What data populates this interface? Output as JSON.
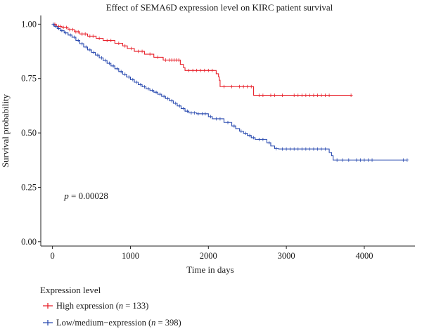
{
  "chart_data": {
    "type": "line",
    "subtype": "kaplan-meier",
    "title": "Effect of SEMA6D expression level on KIRC patient survival",
    "xlabel": "Time in days",
    "ylabel": "Survival probability",
    "xlim": [
      -150,
      4650
    ],
    "ylim": [
      -0.02,
      1.04
    ],
    "x_ticks": [
      0,
      1000,
      2000,
      3000,
      4000
    ],
    "x_tick_labels": [
      "0",
      "1000",
      "2000",
      "3000",
      "4000"
    ],
    "y_ticks": [
      0,
      0.25,
      0.5,
      0.75,
      1.0
    ],
    "y_tick_labels": [
      "0.00",
      "0.25",
      "0.50",
      "0.75",
      "1.00"
    ],
    "grid": false,
    "annotation": {
      "prefix": "p",
      "text": " = 0.00028",
      "x": 150,
      "y": 0.21
    },
    "legend": {
      "title": "Expression level",
      "placement": "bottom-left",
      "entries": [
        {
          "prefix": "High expression (",
          "n_label": "n",
          "suffix": " = 133)"
        },
        {
          "prefix": "Low/medium−expression (",
          "n_label": "n",
          "suffix": " = 398)"
        }
      ]
    },
    "series": [
      {
        "name": "High expression",
        "color": "#e8202a",
        "steps": [
          [
            0,
            1.0
          ],
          [
            50,
            0.99
          ],
          [
            120,
            0.985
          ],
          [
            200,
            0.975
          ],
          [
            280,
            0.965
          ],
          [
            350,
            0.955
          ],
          [
            450,
            0.945
          ],
          [
            560,
            0.935
          ],
          [
            650,
            0.925
          ],
          [
            800,
            0.912
          ],
          [
            900,
            0.9
          ],
          [
            960,
            0.888
          ],
          [
            1050,
            0.875
          ],
          [
            1180,
            0.862
          ],
          [
            1300,
            0.848
          ],
          [
            1420,
            0.835
          ],
          [
            1640,
            0.815
          ],
          [
            1680,
            0.8
          ],
          [
            1700,
            0.787
          ],
          [
            2100,
            0.772
          ],
          [
            2130,
            0.758
          ],
          [
            2140,
            0.742
          ],
          [
            2150,
            0.713
          ],
          [
            2580,
            0.673
          ],
          [
            3830,
            0.673
          ]
        ],
        "censor_x": [
          30,
          80,
          100,
          140,
          180,
          220,
          260,
          300,
          330,
          380,
          420,
          480,
          520,
          600,
          700,
          750,
          850,
          930,
          1010,
          1100,
          1150,
          1250,
          1350,
          1450,
          1500,
          1530,
          1560,
          1590,
          1620,
          1750,
          1800,
          1850,
          1900,
          1950,
          2000,
          2050,
          2200,
          2300,
          2400,
          2450,
          2500,
          2550,
          2650,
          2700,
          2800,
          2850,
          2950,
          3100,
          3150,
          3200,
          3250,
          3300,
          3350,
          3400,
          3450,
          3500,
          3550,
          3830
        ]
      },
      {
        "name": "Low/medium−expression",
        "color": "#2a4bb0",
        "steps": [
          [
            0,
            1.0
          ],
          [
            20,
            0.99
          ],
          [
            60,
            0.98
          ],
          [
            100,
            0.97
          ],
          [
            150,
            0.96
          ],
          [
            200,
            0.95
          ],
          [
            250,
            0.94
          ],
          [
            300,
            0.925
          ],
          [
            350,
            0.91
          ],
          [
            400,
            0.895
          ],
          [
            450,
            0.882
          ],
          [
            500,
            0.87
          ],
          [
            550,
            0.858
          ],
          [
            600,
            0.845
          ],
          [
            650,
            0.833
          ],
          [
            700,
            0.82
          ],
          [
            750,
            0.808
          ],
          [
            800,
            0.795
          ],
          [
            850,
            0.782
          ],
          [
            900,
            0.77
          ],
          [
            950,
            0.757
          ],
          [
            1000,
            0.745
          ],
          [
            1050,
            0.733
          ],
          [
            1100,
            0.722
          ],
          [
            1150,
            0.712
          ],
          [
            1200,
            0.703
          ],
          [
            1250,
            0.695
          ],
          [
            1300,
            0.687
          ],
          [
            1350,
            0.678
          ],
          [
            1400,
            0.668
          ],
          [
            1450,
            0.658
          ],
          [
            1500,
            0.648
          ],
          [
            1550,
            0.636
          ],
          [
            1600,
            0.624
          ],
          [
            1650,
            0.612
          ],
          [
            1700,
            0.6
          ],
          [
            1750,
            0.592
          ],
          [
            1850,
            0.588
          ],
          [
            2000,
            0.575
          ],
          [
            2050,
            0.565
          ],
          [
            2200,
            0.548
          ],
          [
            2300,
            0.532
          ],
          [
            2350,
            0.52
          ],
          [
            2400,
            0.508
          ],
          [
            2450,
            0.498
          ],
          [
            2500,
            0.488
          ],
          [
            2550,
            0.478
          ],
          [
            2600,
            0.47
          ],
          [
            2750,
            0.455
          ],
          [
            2800,
            0.44
          ],
          [
            2850,
            0.428
          ],
          [
            2900,
            0.426
          ],
          [
            3550,
            0.41
          ],
          [
            3580,
            0.395
          ],
          [
            3600,
            0.375
          ],
          [
            4550,
            0.375
          ]
        ],
        "censor_x": [
          10,
          40,
          80,
          120,
          170,
          230,
          280,
          330,
          380,
          430,
          480,
          530,
          580,
          630,
          680,
          730,
          780,
          830,
          880,
          930,
          980,
          1030,
          1080,
          1130,
          1180,
          1230,
          1280,
          1330,
          1380,
          1430,
          1480,
          1530,
          1580,
          1630,
          1680,
          1730,
          1780,
          1820,
          1870,
          1920,
          1960,
          2030,
          2100,
          2150,
          2250,
          2330,
          2420,
          2480,
          2530,
          2580,
          2650,
          2700,
          2780,
          2870,
          2950,
          3000,
          3050,
          3100,
          3150,
          3200,
          3250,
          3300,
          3350,
          3400,
          3450,
          3500,
          3650,
          3720,
          3800,
          3900,
          3950,
          4000,
          4050,
          4100,
          4500,
          4550
        ]
      }
    ]
  }
}
